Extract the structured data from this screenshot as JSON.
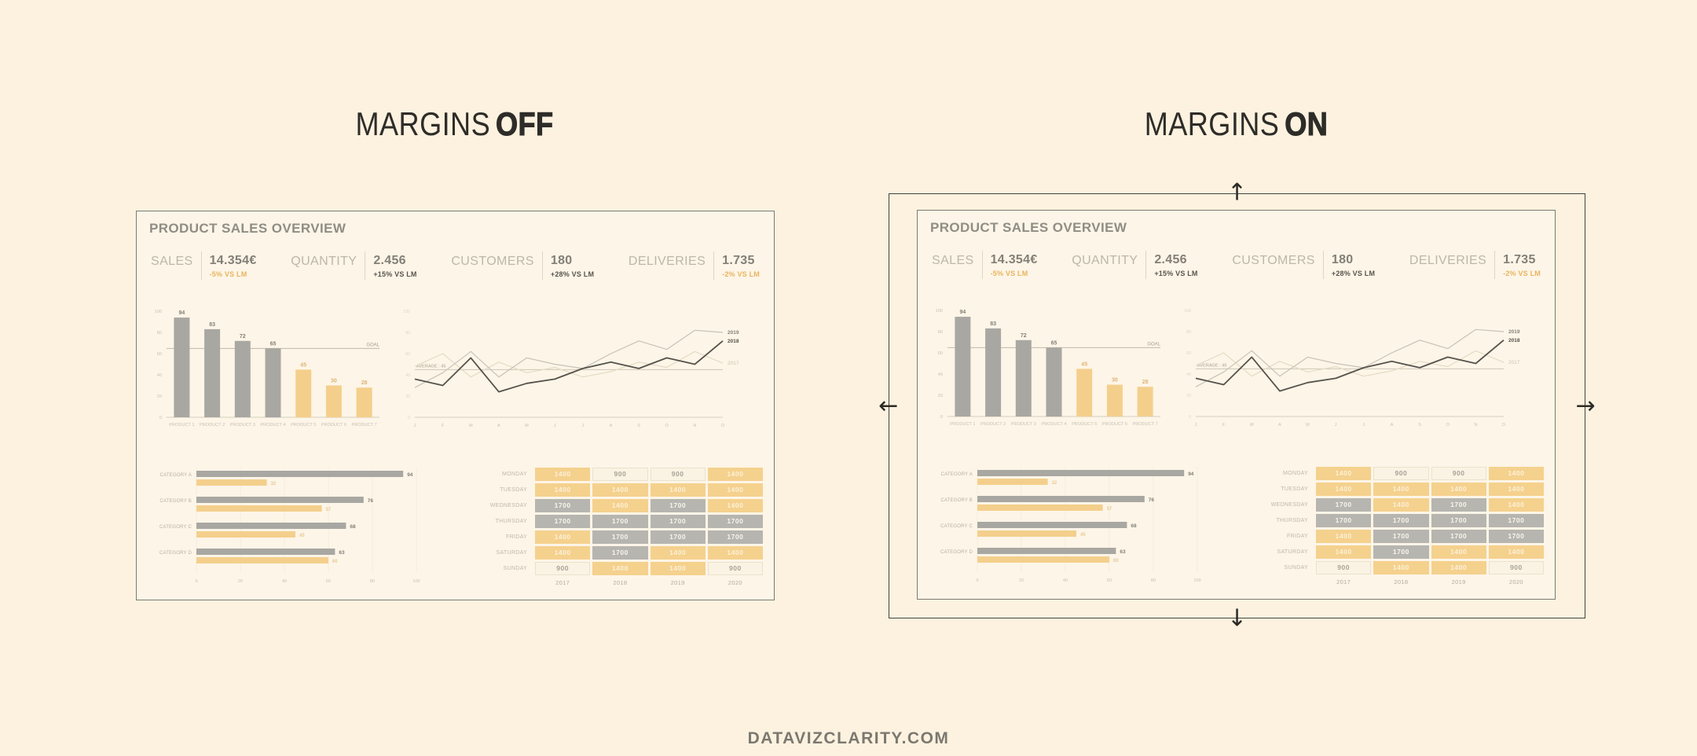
{
  "headings": {
    "off": {
      "prefix": "MARGINS",
      "emphasis": "OFF"
    },
    "on": {
      "prefix": "MARGINS",
      "emphasis": "ON"
    }
  },
  "footer": {
    "text": "DATAVIZCLARITY.COM"
  },
  "margin_box": {
    "arrows": [
      {
        "dir": "up",
        "glyph": "↑"
      },
      {
        "dir": "down",
        "glyph": "↓"
      },
      {
        "dir": "left",
        "glyph": "←"
      },
      {
        "dir": "right",
        "glyph": "→"
      }
    ]
  },
  "colors": {
    "background": "#fcf2df",
    "panel_background": "#fdf5e7",
    "accent_orange": "#f4cf8c",
    "accent_orange_text": "#e9b45f",
    "bar_gray": "#a9a7a2",
    "dark_line": "#55524c",
    "light_line": "#c6c2b9",
    "faint_line": "#e4dbc5",
    "heading_text": "#2e2c29"
  },
  "dashboard": {
    "title": "PRODUCT SALES OVERVIEW",
    "kpis": [
      {
        "label": "SALES",
        "value": "14.354€",
        "change": "-5% VS LM",
        "tone": "orange"
      },
      {
        "label": "QUANTITY",
        "value": "2.456",
        "change": "+15% VS LM",
        "tone": "dark"
      },
      {
        "label": "CUSTOMERS",
        "value": "180",
        "change": "+28% VS LM",
        "tone": "dark"
      },
      {
        "label": "DELIVERIES",
        "value": "1.735",
        "change": "-2% VS LM",
        "tone": "orange"
      }
    ]
  },
  "chart_data": [
    {
      "type": "bar",
      "categories": [
        "PRODUCT 1",
        "PRODUCT 2",
        "PRODUCT 3",
        "PRODUCT 4",
        "PRODUCT 5",
        "PRODUCT 6",
        "PRODUCT 7"
      ],
      "values": [
        94,
        83,
        72,
        65,
        45,
        30,
        28
      ],
      "bar_tones": [
        "gray",
        "gray",
        "gray",
        "gray",
        "orange",
        "orange",
        "orange"
      ],
      "goal": {
        "value": 65,
        "label": "GOAL"
      },
      "ylim": [
        0,
        100
      ],
      "yticks": [
        0,
        20,
        40,
        60,
        80,
        100
      ]
    },
    {
      "type": "line",
      "x_labels": [
        "J",
        "F",
        "M",
        "A",
        "M",
        "J",
        "J",
        "A",
        "S",
        "O",
        "N",
        "D"
      ],
      "series": [
        {
          "name": "2017",
          "tone": "faint",
          "values": [
            48,
            60,
            38,
            52,
            42,
            47,
            38,
            43,
            52,
            47,
            62,
            51
          ]
        },
        {
          "name": "2019",
          "tone": "light",
          "values": [
            28,
            42,
            62,
            38,
            56,
            50,
            46,
            60,
            72,
            64,
            82,
            80
          ]
        },
        {
          "name": "2018",
          "tone": "dark",
          "values": [
            36,
            30,
            56,
            24,
            32,
            36,
            46,
            52,
            46,
            56,
            50,
            72
          ]
        }
      ],
      "average": {
        "value": 45,
        "label": "AVERAGE : 45"
      },
      "ylim": [
        0,
        100
      ]
    },
    {
      "type": "bar-horizontal",
      "categories": [
        "CATEGORY A",
        "CATEGORY B",
        "CATEGORY C",
        "CATEGORY D"
      ],
      "series": [
        {
          "name": "gray",
          "tone": "gray",
          "values": [
            94,
            76,
            68,
            63
          ]
        },
        {
          "name": "orange",
          "tone": "orange",
          "values": [
            32,
            57,
            45,
            60
          ]
        }
      ],
      "xticks": [
        0,
        20,
        40,
        60,
        80,
        100
      ],
      "xlim": [
        0,
        100
      ]
    },
    {
      "type": "table",
      "rows": [
        "MONDAY",
        "TUESDAY",
        "WEDNESDAY",
        "THURSDAY",
        "FRIDAY",
        "SATURDAY",
        "SUNDAY"
      ],
      "columns": [
        "2017",
        "2018",
        "2019",
        "2020"
      ],
      "values": [
        [
          1400,
          900,
          900,
          1400
        ],
        [
          1400,
          1400,
          1400,
          1400
        ],
        [
          1700,
          1400,
          1700,
          1400
        ],
        [
          1700,
          1700,
          1700,
          1700
        ],
        [
          1400,
          1700,
          1700,
          1700
        ],
        [
          1400,
          1700,
          1400,
          1400
        ],
        [
          900,
          1400,
          1400,
          900
        ]
      ],
      "value_styles": {
        "900": "plain",
        "1400": "orange",
        "1700": "gray"
      }
    }
  ]
}
